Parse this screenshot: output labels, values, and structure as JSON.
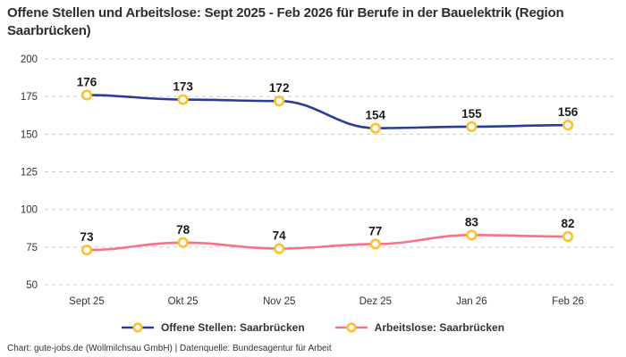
{
  "header": {
    "title": "Offene Stellen und Arbeitslose: Sept 2025 - Feb 2026 für Berufe in der Bauelektrik (Region Saarbrücken)"
  },
  "chart_data": {
    "type": "line",
    "categories": [
      "Sept 25",
      "Okt 25",
      "Nov 25",
      "Dez 25",
      "Jan 26",
      "Feb 26"
    ],
    "series": [
      {
        "id": "offene-stellen",
        "name": "Offene Stellen: Saarbrücken",
        "color": "#283c9b",
        "values": [
          176,
          173,
          172,
          154,
          155,
          156
        ]
      },
      {
        "id": "arbeitslose",
        "name": "Arbeitslose: Saarbrücken",
        "color": "#f9708a",
        "values": [
          73,
          78,
          74,
          77,
          83,
          82
        ]
      }
    ],
    "title": "Offene Stellen und Arbeitslose: Sept 2025 - Feb 2026 für Berufe in der Bauelektrik (Region Saarbrücken)",
    "xlabel": "",
    "ylabel": "",
    "ylim": [
      50,
      200
    ],
    "yticks": [
      200,
      175,
      150,
      125,
      100,
      75,
      50
    ],
    "grid": "horizontal-dashed",
    "grid_color": "#cccccc",
    "tick_label_color": "#333333",
    "value_label_color": "#1a1a1a",
    "marker_color": "#fcc12d",
    "marker_fill": "#ffffff",
    "legend_position": "bottom",
    "show_value_labels": true
  },
  "footer": {
    "text": "Chart: gute-jobs.de (Wollmilchsau GmbH) | Datenquelle: Bundesagentur für Arbeit"
  }
}
